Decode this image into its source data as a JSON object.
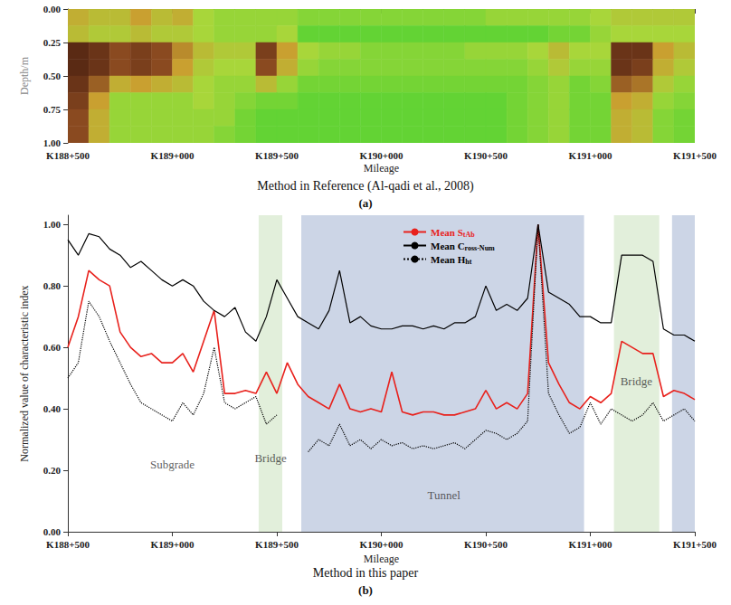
{
  "chart_data": [
    {
      "type": "heatmap",
      "caption": "Method in Reference (Al-qadi et al., 2008)",
      "panel_label": "(a)",
      "x_label": "Mileage",
      "y_label": "Depth/m",
      "x_bins": [
        188500,
        188600,
        188700,
        188800,
        188900,
        189000,
        189100,
        189200,
        189300,
        189400,
        189500,
        189600,
        189700,
        189800,
        189900,
        190000,
        190100,
        190200,
        190300,
        190400,
        190500,
        190600,
        190700,
        190800,
        190900,
        191000,
        191100,
        191200,
        191300,
        191400,
        191500
      ],
      "y_bins": [
        0,
        0.125,
        0.25,
        0.375,
        0.5,
        0.625,
        0.75,
        0.875,
        1
      ],
      "cells": [
        [
          0.5,
          0.45,
          0.45,
          0.55,
          0.45,
          0.5,
          0.35,
          0.3,
          0.3,
          0.3,
          0.3,
          0.25,
          0.25,
          0.25,
          0.25,
          0.25,
          0.25,
          0.25,
          0.25,
          0.25,
          0.3,
          0.3,
          0.3,
          0.3,
          0.3,
          0.35,
          0.4,
          0.4,
          0.4,
          0.4
        ],
        [
          0.45,
          0.4,
          0.4,
          0.45,
          0.4,
          0.4,
          0.35,
          0.3,
          0.3,
          0.3,
          0.35,
          0.15,
          0.15,
          0.15,
          0.15,
          0.15,
          0.15,
          0.15,
          0.15,
          0.15,
          0.15,
          0.15,
          0.15,
          0.2,
          0.2,
          0.3,
          0.35,
          0.35,
          0.35,
          0.35
        ],
        [
          0.9,
          0.85,
          0.75,
          0.8,
          0.75,
          0.6,
          0.45,
          0.4,
          0.4,
          0.8,
          0.55,
          0.35,
          0.3,
          0.3,
          0.25,
          0.25,
          0.25,
          0.25,
          0.25,
          0.3,
          0.3,
          0.3,
          0.35,
          0.45,
          0.35,
          0.35,
          0.85,
          0.85,
          0.55,
          0.45
        ],
        [
          0.9,
          0.85,
          0.75,
          0.8,
          0.75,
          0.55,
          0.4,
          0.35,
          0.35,
          0.75,
          0.5,
          0.3,
          0.25,
          0.25,
          0.25,
          0.25,
          0.25,
          0.25,
          0.25,
          0.25,
          0.25,
          0.25,
          0.3,
          0.4,
          0.3,
          0.3,
          0.85,
          0.8,
          0.5,
          0.4
        ],
        [
          0.85,
          0.7,
          0.5,
          0.55,
          0.5,
          0.45,
          0.35,
          0.3,
          0.3,
          0.45,
          0.3,
          0.2,
          0.2,
          0.2,
          0.2,
          0.2,
          0.2,
          0.2,
          0.2,
          0.2,
          0.2,
          0.2,
          0.25,
          0.3,
          0.2,
          0.25,
          0.7,
          0.65,
          0.4,
          0.3
        ],
        [
          0.8,
          0.55,
          0.3,
          0.3,
          0.3,
          0.3,
          0.35,
          0.3,
          0.25,
          0.2,
          0.2,
          0.15,
          0.15,
          0.15,
          0.15,
          0.15,
          0.15,
          0.15,
          0.15,
          0.15,
          0.15,
          0.2,
          0.25,
          0.3,
          0.2,
          0.2,
          0.55,
          0.5,
          0.3,
          0.25
        ],
        [
          0.75,
          0.5,
          0.3,
          0.3,
          0.3,
          0.3,
          0.3,
          0.3,
          0.2,
          0.15,
          0.15,
          0.15,
          0.15,
          0.15,
          0.15,
          0.15,
          0.15,
          0.15,
          0.15,
          0.15,
          0.15,
          0.2,
          0.25,
          0.3,
          0.2,
          0.2,
          0.5,
          0.45,
          0.25,
          0.2
        ],
        [
          0.75,
          0.5,
          0.3,
          0.3,
          0.3,
          0.3,
          0.3,
          0.25,
          0.2,
          0.15,
          0.15,
          0.15,
          0.15,
          0.15,
          0.15,
          0.15,
          0.15,
          0.15,
          0.15,
          0.15,
          0.15,
          0.2,
          0.25,
          0.3,
          0.2,
          0.2,
          0.5,
          0.45,
          0.25,
          0.2
        ]
      ],
      "value_range": [
        0,
        1
      ],
      "xlim": [
        188500,
        191500
      ],
      "xticks": [
        {
          "value": 188500,
          "label": "K188+500"
        },
        {
          "value": 189000,
          "label": "K189+000"
        },
        {
          "value": 189500,
          "label": "K189+500"
        },
        {
          "value": 190000,
          "label": "K190+000"
        },
        {
          "value": 190500,
          "label": "K190+500"
        },
        {
          "value": 191000,
          "label": "K191+000"
        },
        {
          "value": 191500,
          "label": "K191+500"
        }
      ],
      "ylim": [
        0,
        1
      ],
      "yticks": [
        {
          "value": 0,
          "label": "0.00"
        },
        {
          "value": 0.25,
          "label": "0.25"
        },
        {
          "value": 0.5,
          "label": "0.50"
        },
        {
          "value": 0.75,
          "label": "0.75"
        },
        {
          "value": 1,
          "label": "1.00"
        }
      ]
    },
    {
      "type": "line",
      "caption": "Method in this paper",
      "panel_label": "(b)",
      "x_label": "Mileage",
      "y_label": "Normalized value of characteristic index",
      "x": [
        188500,
        188550,
        188600,
        188650,
        188700,
        188750,
        188800,
        188850,
        188900,
        188950,
        189000,
        189050,
        189100,
        189150,
        189200,
        189250,
        189300,
        189350,
        189400,
        189450,
        189500,
        189550,
        189600,
        189650,
        189700,
        189750,
        189800,
        189850,
        189900,
        189950,
        190000,
        190050,
        190100,
        190150,
        190200,
        190250,
        190300,
        190350,
        190400,
        190450,
        190500,
        190550,
        190600,
        190650,
        190700,
        190750,
        190800,
        190850,
        190900,
        190950,
        191000,
        191050,
        191100,
        191150,
        191200,
        191250,
        191300,
        191350,
        191400,
        191450,
        191500
      ],
      "series": [
        {
          "name": "Mean StAb",
          "color": "#e8211c",
          "line_style": "solid",
          "marker": "none",
          "values": [
            0.6,
            0.7,
            0.85,
            0.82,
            0.8,
            0.65,
            0.6,
            0.57,
            0.58,
            0.55,
            0.55,
            0.58,
            0.52,
            0.62,
            0.72,
            0.45,
            0.45,
            0.46,
            0.45,
            0.52,
            0.45,
            0.55,
            0.48,
            0.44,
            0.42,
            0.4,
            0.48,
            0.4,
            0.39,
            0.4,
            0.39,
            0.52,
            0.39,
            0.38,
            0.39,
            0.39,
            0.38,
            0.38,
            0.39,
            0.4,
            0.46,
            0.4,
            0.42,
            0.4,
            0.45,
            1.0,
            0.55,
            0.48,
            0.42,
            0.4,
            0.44,
            0.42,
            0.45,
            0.62,
            0.6,
            0.58,
            0.58,
            0.44,
            0.46,
            0.45,
            0.43
          ]
        },
        {
          "name": "Mean Cross-Num",
          "color": "#000000",
          "line_style": "solid",
          "marker": "none",
          "values": [
            0.95,
            0.9,
            0.97,
            0.96,
            0.92,
            0.9,
            0.86,
            0.88,
            0.85,
            0.82,
            0.8,
            0.82,
            0.8,
            0.75,
            0.72,
            0.7,
            0.73,
            0.65,
            0.62,
            0.7,
            0.82,
            0.76,
            0.7,
            0.68,
            0.66,
            0.72,
            0.85,
            0.68,
            0.7,
            0.67,
            0.66,
            0.66,
            0.67,
            0.67,
            0.66,
            0.67,
            0.66,
            0.68,
            0.68,
            0.7,
            0.8,
            0.72,
            0.74,
            0.72,
            0.76,
            1.0,
            0.78,
            0.76,
            0.74,
            0.7,
            0.7,
            0.68,
            0.68,
            0.9,
            0.9,
            0.9,
            0.88,
            0.66,
            0.64,
            0.64,
            0.62
          ]
        },
        {
          "name": "Mean Hht",
          "color": "#000000",
          "line_style": "dotted",
          "marker": "none",
          "values": [
            0.5,
            0.55,
            0.75,
            0.7,
            0.62,
            0.55,
            0.48,
            0.42,
            0.4,
            0.38,
            0.36,
            0.42,
            0.38,
            0.45,
            0.6,
            0.42,
            0.4,
            0.42,
            0.44,
            0.35,
            0.38,
            null,
            null,
            0.26,
            0.3,
            0.28,
            0.35,
            0.28,
            0.3,
            0.27,
            0.3,
            0.28,
            0.29,
            0.27,
            0.28,
            0.27,
            0.28,
            0.29,
            0.27,
            0.3,
            0.33,
            0.32,
            0.3,
            0.32,
            0.36,
            1.0,
            0.45,
            0.38,
            0.32,
            0.34,
            0.42,
            0.35,
            0.4,
            0.38,
            0.36,
            0.38,
            0.42,
            0.36,
            0.38,
            0.4,
            0.36
          ]
        }
      ],
      "regions": [
        {
          "x": [
            189413,
            189526
          ],
          "color": "#e2efdb"
        },
        {
          "x": [
            189617,
            190970
          ],
          "color": "#ccd5e6"
        },
        {
          "x": [
            191113,
            191330
          ],
          "color": "#e2efdb"
        },
        {
          "x": [
            191391,
            191500
          ],
          "color": "#ccd5e6"
        }
      ],
      "annotations": [
        {
          "text": "Subgrade",
          "x": 189000,
          "y": 0.22
        },
        {
          "text": "Bridge",
          "x": 189470,
          "y": 0.24
        },
        {
          "text": "Tunnel",
          "x": 190300,
          "y": 0.12
        },
        {
          "text": "Bridge",
          "x": 191220,
          "y": 0.49
        }
      ],
      "legend": "top",
      "xlim": [
        188500,
        191500
      ],
      "xticks": [
        {
          "value": 188500,
          "label": "K188+500"
        },
        {
          "value": 189000,
          "label": "K189+000"
        },
        {
          "value": 189500,
          "label": "K189+500"
        },
        {
          "value": 190000,
          "label": "K190+000"
        },
        {
          "value": 190500,
          "label": "K190+500"
        },
        {
          "value": 191000,
          "label": "K191+000"
        },
        {
          "value": 191500,
          "label": "K191+500"
        }
      ],
      "ylim": [
        0,
        1.03
      ],
      "yticks": [
        {
          "value": 0,
          "label": "0.00"
        },
        {
          "value": 0.2,
          "label": "0.20"
        },
        {
          "value": 0.4,
          "label": "0.40"
        },
        {
          "value": 0.6,
          "label": "0.60"
        },
        {
          "value": 0.8,
          "label": "0.80"
        },
        {
          "value": 1,
          "label": "1.00"
        }
      ]
    }
  ]
}
